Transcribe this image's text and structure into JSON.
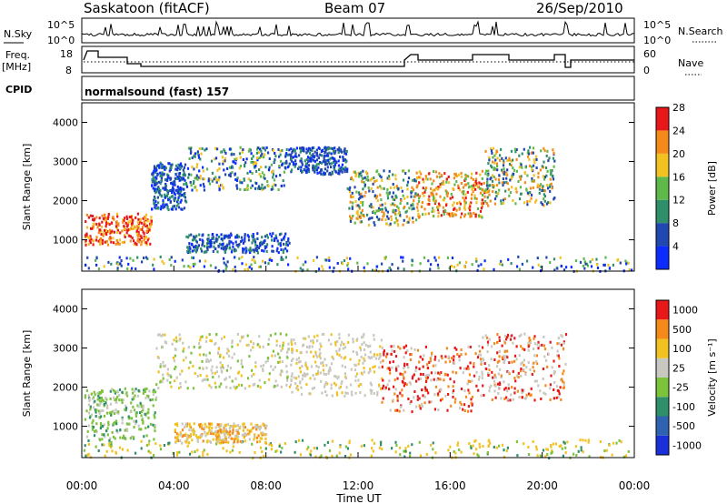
{
  "header": {
    "station": "Saskatoon (fitACF)",
    "beam": "Beam 07",
    "date": "26/Sep/2010"
  },
  "top_strip": {
    "nsky_label": "N.Sky",
    "freq_label_1": "Freq.",
    "freq_label_2": "[MHz]",
    "cpid_label": "CPID",
    "nsearch_label": "N.Search",
    "nave_label": "Nave",
    "nsky_ticks": [
      "10^5",
      "10^0"
    ],
    "freq_ticks": [
      "18",
      "8"
    ],
    "nave_ticks": [
      "60",
      "0"
    ],
    "cpid_text": "normalsound (fast) 157"
  },
  "chart_data": [
    {
      "type": "heatmap",
      "name": "power",
      "ylabel": "Slant Range [km]",
      "xlabel": "",
      "ylim": [
        200,
        4500
      ],
      "yticks": [
        1000,
        2000,
        3000,
        4000
      ],
      "colorbar_label": "Power [dB]",
      "colorbar_ticks": [
        "4",
        "8",
        "12",
        "16",
        "20",
        "24",
        "28"
      ],
      "colorbar_colors": [
        "#0b2bff",
        "#2147b0",
        "#2e8f6a",
        "#5fb84a",
        "#f2c221",
        "#f48a1a",
        "#e8171a"
      ]
    },
    {
      "type": "heatmap",
      "name": "velocity",
      "ylabel": "Slant Range [km]",
      "xlabel": "Time UT",
      "ylim": [
        200,
        4500
      ],
      "yticks": [
        1000,
        2000,
        3000,
        4000
      ],
      "xticks": [
        "00:00",
        "04:00",
        "08:00",
        "12:00",
        "16:00",
        "20:00",
        "00:00"
      ],
      "colorbar_label": "Velocity [m s⁻¹]",
      "colorbar_ticks": [
        "1000",
        "500",
        "100",
        "25",
        "-25",
        "-100",
        "-500",
        "-1000"
      ],
      "colorbar_colors": [
        "#1a2fd9",
        "#2f62b0",
        "#2e8f6a",
        "#7cc23a",
        "#c8c8c0",
        "#f2c221",
        "#f48a1a",
        "#e8171a"
      ]
    }
  ]
}
